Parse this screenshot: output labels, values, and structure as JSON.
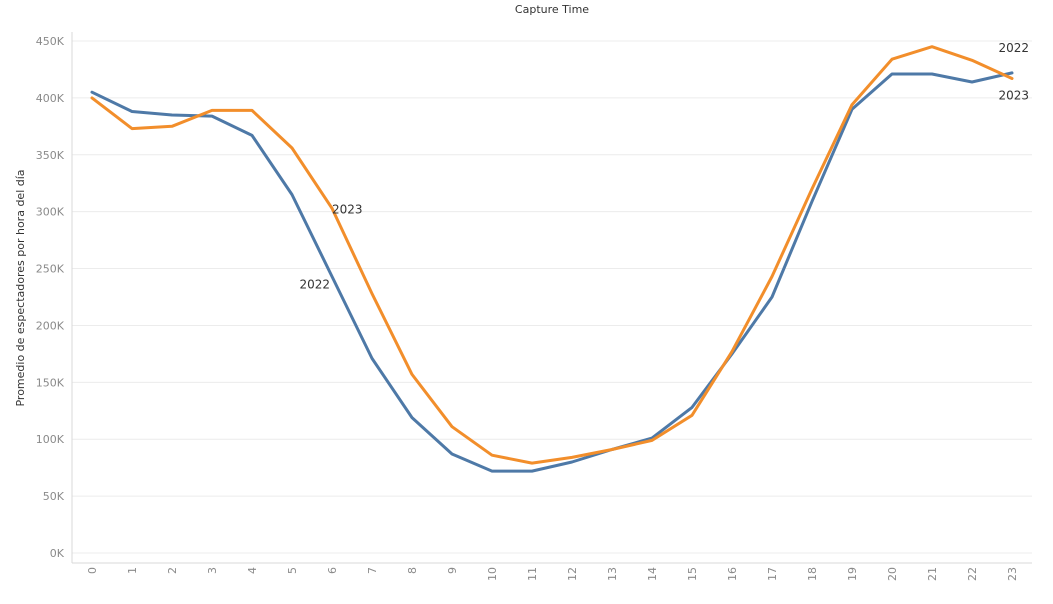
{
  "chart_data": {
    "type": "line",
    "title": "Capture Time",
    "xlabel": "",
    "ylabel": "Promedio de espectadores por hora del día",
    "x": [
      0,
      1,
      2,
      3,
      4,
      5,
      6,
      7,
      8,
      9,
      10,
      11,
      12,
      13,
      14,
      15,
      16,
      17,
      18,
      19,
      20,
      21,
      22,
      23
    ],
    "xticks": [
      "0",
      "1",
      "2",
      "3",
      "4",
      "5",
      "6",
      "7",
      "8",
      "9",
      "10",
      "11",
      "12",
      "13",
      "14",
      "15",
      "16",
      "17",
      "18",
      "19",
      "20",
      "21",
      "22",
      "23"
    ],
    "ylim": [
      0,
      450000
    ],
    "yticks": [
      {
        "value": 0,
        "label": "0K"
      },
      {
        "value": 50000,
        "label": "50K"
      },
      {
        "value": 100000,
        "label": "100K"
      },
      {
        "value": 150000,
        "label": "150K"
      },
      {
        "value": 200000,
        "label": "200K"
      },
      {
        "value": 250000,
        "label": "250K"
      },
      {
        "value": 300000,
        "label": "300K"
      },
      {
        "value": 350000,
        "label": "350K"
      },
      {
        "value": 400000,
        "label": "400K"
      },
      {
        "value": 450000,
        "label": "450K"
      }
    ],
    "grid": true,
    "series": [
      {
        "name": "2022",
        "color": "#4e79a7",
        "values": [
          405000,
          388000,
          385000,
          384000,
          367000,
          315000,
          243000,
          171000,
          119000,
          87000,
          72000,
          72000,
          80000,
          91000,
          101000,
          128000,
          175000,
          225000,
          309000,
          390000,
          421000,
          421000,
          414000,
          422000
        ],
        "labels": [
          {
            "text": "2022",
            "at_x": 6
          },
          {
            "text": "2022",
            "at_x": 23
          }
        ]
      },
      {
        "name": "2023",
        "color": "#f28e2b",
        "values": [
          400000,
          373000,
          375000,
          389000,
          389000,
          356000,
          303000,
          228000,
          157000,
          111000,
          86000,
          79000,
          84000,
          91000,
          99000,
          121000,
          177000,
          243000,
          320000,
          394000,
          434000,
          445000,
          433000,
          417000
        ],
        "labels": [
          {
            "text": "2023",
            "at_x": 6
          },
          {
            "text": "2023",
            "at_x": 23
          }
        ]
      }
    ]
  }
}
